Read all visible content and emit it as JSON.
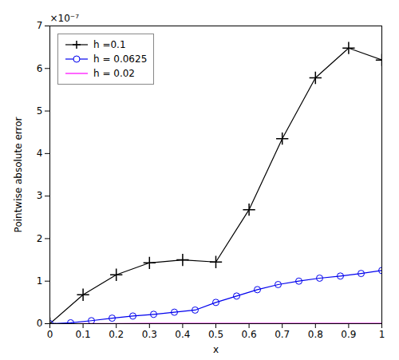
{
  "chart_data": {
    "type": "line",
    "xlabel": "x",
    "ylabel": "Pointwise absolute error",
    "annotation": "×10⁻⁷",
    "series": [
      {
        "name": "h =0.1",
        "color": "#000000",
        "marker": "plus",
        "x": [
          0.0,
          0.1,
          0.2,
          0.3,
          0.4,
          0.5,
          0.6,
          0.7,
          0.8,
          0.9,
          1.0
        ],
        "values": [
          0.0,
          6.8e-08,
          1.15e-07,
          1.43e-07,
          1.5e-07,
          1.45e-07,
          2.68e-07,
          4.35e-07,
          5.78e-07,
          6.48e-07,
          6.2e-07
        ]
      },
      {
        "name": "h = 0.0625",
        "color": "#0000EE",
        "marker": "circle",
        "x": [
          0.0,
          0.0625,
          0.125,
          0.1875,
          0.25,
          0.3125,
          0.375,
          0.4375,
          0.5,
          0.5625,
          0.625,
          0.6875,
          0.75,
          0.8125,
          0.875,
          0.9375,
          1.0
        ],
        "values": [
          0.0,
          2e-09,
          7e-09,
          1.3e-08,
          1.8e-08,
          2.2e-08,
          2.7e-08,
          3.2e-08,
          5e-08,
          6.5e-08,
          8e-08,
          9.2e-08,
          1e-07,
          1.07e-07,
          1.12e-07,
          1.18e-07,
          1.25e-07
        ]
      },
      {
        "name": "h = 0.02",
        "color": "#FF00FF",
        "marker": "none",
        "x": [
          0.0,
          0.02,
          0.04,
          0.06,
          0.08,
          0.1,
          0.2,
          0.3,
          0.4,
          0.5,
          0.6,
          0.7,
          0.8,
          0.9,
          1.0
        ],
        "values": [
          0.0,
          0.0,
          0.0,
          0.0,
          0.0,
          3e-10,
          5e-10,
          6e-10,
          6e-10,
          6e-10,
          7e-10,
          7e-10,
          7e-10,
          7e-10,
          7e-10
        ]
      }
    ],
    "xlim": [
      0,
      1.0
    ],
    "ylim": [
      0,
      7e-07
    ],
    "xticks": [
      0,
      0.1,
      0.2,
      0.3,
      0.4,
      0.5,
      0.6,
      0.7,
      0.8,
      0.9,
      1
    ],
    "yticks": [
      0,
      {
        "value": 1e-07,
        "label": "1"
      },
      {
        "value": 2e-07,
        "label": "2"
      },
      {
        "value": 3e-07,
        "label": "3"
      },
      {
        "value": 4e-07,
        "label": "4"
      },
      {
        "value": 5e-07,
        "label": "5"
      },
      {
        "value": 6e-07,
        "label": "6"
      },
      {
        "value": 7e-07,
        "label": "7"
      }
    ],
    "legend": "upper left",
    "grid": false
  }
}
